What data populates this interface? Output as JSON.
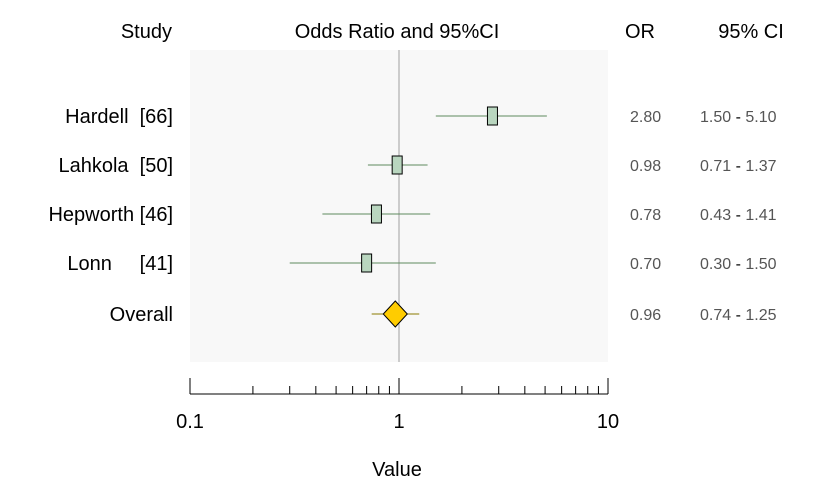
{
  "header": {
    "study": "Study",
    "plot": "Odds Ratio and 95%CI",
    "or": "OR",
    "ci": "95% CI"
  },
  "chart_data": {
    "type": "forest",
    "xlabel": "Value",
    "xscale": "log",
    "xlim": [
      0.1,
      10
    ],
    "reference_line": 1,
    "xticks": [
      "0.1",
      "1",
      "10"
    ],
    "rows": [
      {
        "study": "Hardell  [66]",
        "or": 2.8,
        "lo": 1.5,
        "hi": 5.1,
        "or_text": "2.80",
        "lo_text": "1.50",
        "hi_text": "5.10"
      },
      {
        "study": "Lahkola  [50]",
        "or": 0.98,
        "lo": 0.71,
        "hi": 1.37,
        "or_text": "0.98",
        "lo_text": "0.71",
        "hi_text": "1.37"
      },
      {
        "study": "Hepworth [46]",
        "or": 0.78,
        "lo": 0.43,
        "hi": 1.41,
        "or_text": "0.78",
        "lo_text": "0.43",
        "hi_text": "1.41"
      },
      {
        "study": "Lonn     [41]",
        "or": 0.7,
        "lo": 0.3,
        "hi": 1.5,
        "or_text": "0.70",
        "lo_text": "0.30",
        "hi_text": "1.50"
      }
    ],
    "overall": {
      "study": "Overall",
      "or": 0.96,
      "lo": 0.74,
      "hi": 1.25,
      "or_text": "0.96",
      "lo_text": "0.74",
      "hi_text": "1.25"
    },
    "colors": {
      "panel": "#f8f8f8",
      "whisker": "#5e8a5e",
      "box_fill": "#b9d6bf",
      "box_stroke": "#000000",
      "diamond_fill": "#ffcc00",
      "diamond_stroke": "#000000",
      "ref_line": "#a0a0a0"
    }
  }
}
